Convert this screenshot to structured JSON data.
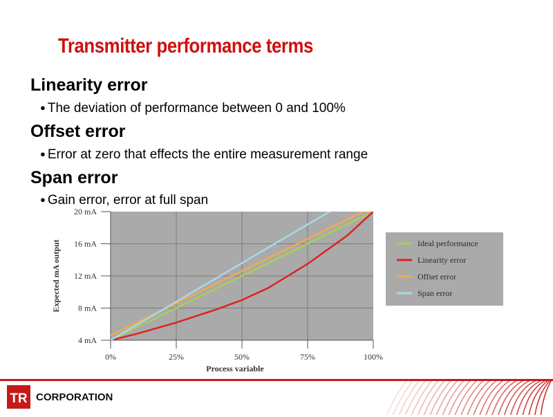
{
  "slide": {
    "title": "Transmitter performance terms",
    "sections": [
      {
        "heading": "Linearity error",
        "bullet": "The deviation of performance between 0 and 100%"
      },
      {
        "heading": "Offset error",
        "bullet": "Error at zero that effects the entire measurement range"
      },
      {
        "heading": "Span error",
        "bullet": "Gain error, error at full span"
      }
    ]
  },
  "chart_data": {
    "type": "line",
    "xlabel": "Process variable",
    "ylabel": "Expected mA output",
    "xlim": [
      0,
      100
    ],
    "ylim": [
      4,
      20
    ],
    "x_ticks": [
      "0%",
      "25%",
      "50%",
      "75%",
      "100%"
    ],
    "y_ticks": [
      "4 mA",
      "8 mA",
      "12 mA",
      "16 mA",
      "20 mA"
    ],
    "grid": true,
    "legend_position": "right",
    "series": [
      {
        "name": "Ideal performance",
        "color": "#a6cf5a",
        "x": [
          0,
          25,
          50,
          75,
          100
        ],
        "y": [
          4,
          8,
          12,
          16,
          20
        ]
      },
      {
        "name": "Linearity error",
        "color": "#e02020",
        "x": [
          0,
          10,
          25,
          40,
          50,
          60,
          75,
          90,
          100
        ],
        "y": [
          4,
          4.8,
          6.2,
          7.8,
          9.0,
          10.5,
          13.5,
          17.0,
          20
        ]
      },
      {
        "name": "Offset error",
        "color": "#f0aa50",
        "x": [
          0,
          25,
          50,
          75,
          100
        ],
        "y": [
          4.6,
          8.6,
          12.6,
          16.6,
          20.6
        ]
      },
      {
        "name": "Span error",
        "color": "#a8d8e8",
        "x": [
          0,
          25,
          50,
          75,
          100
        ],
        "y": [
          4,
          8.8,
          13.6,
          18.4,
          23.2
        ]
      }
    ]
  },
  "footer": {
    "company": "CORPORATION",
    "logo_letters": "TR",
    "colors": {
      "brand_red": "#c51a1a"
    }
  }
}
